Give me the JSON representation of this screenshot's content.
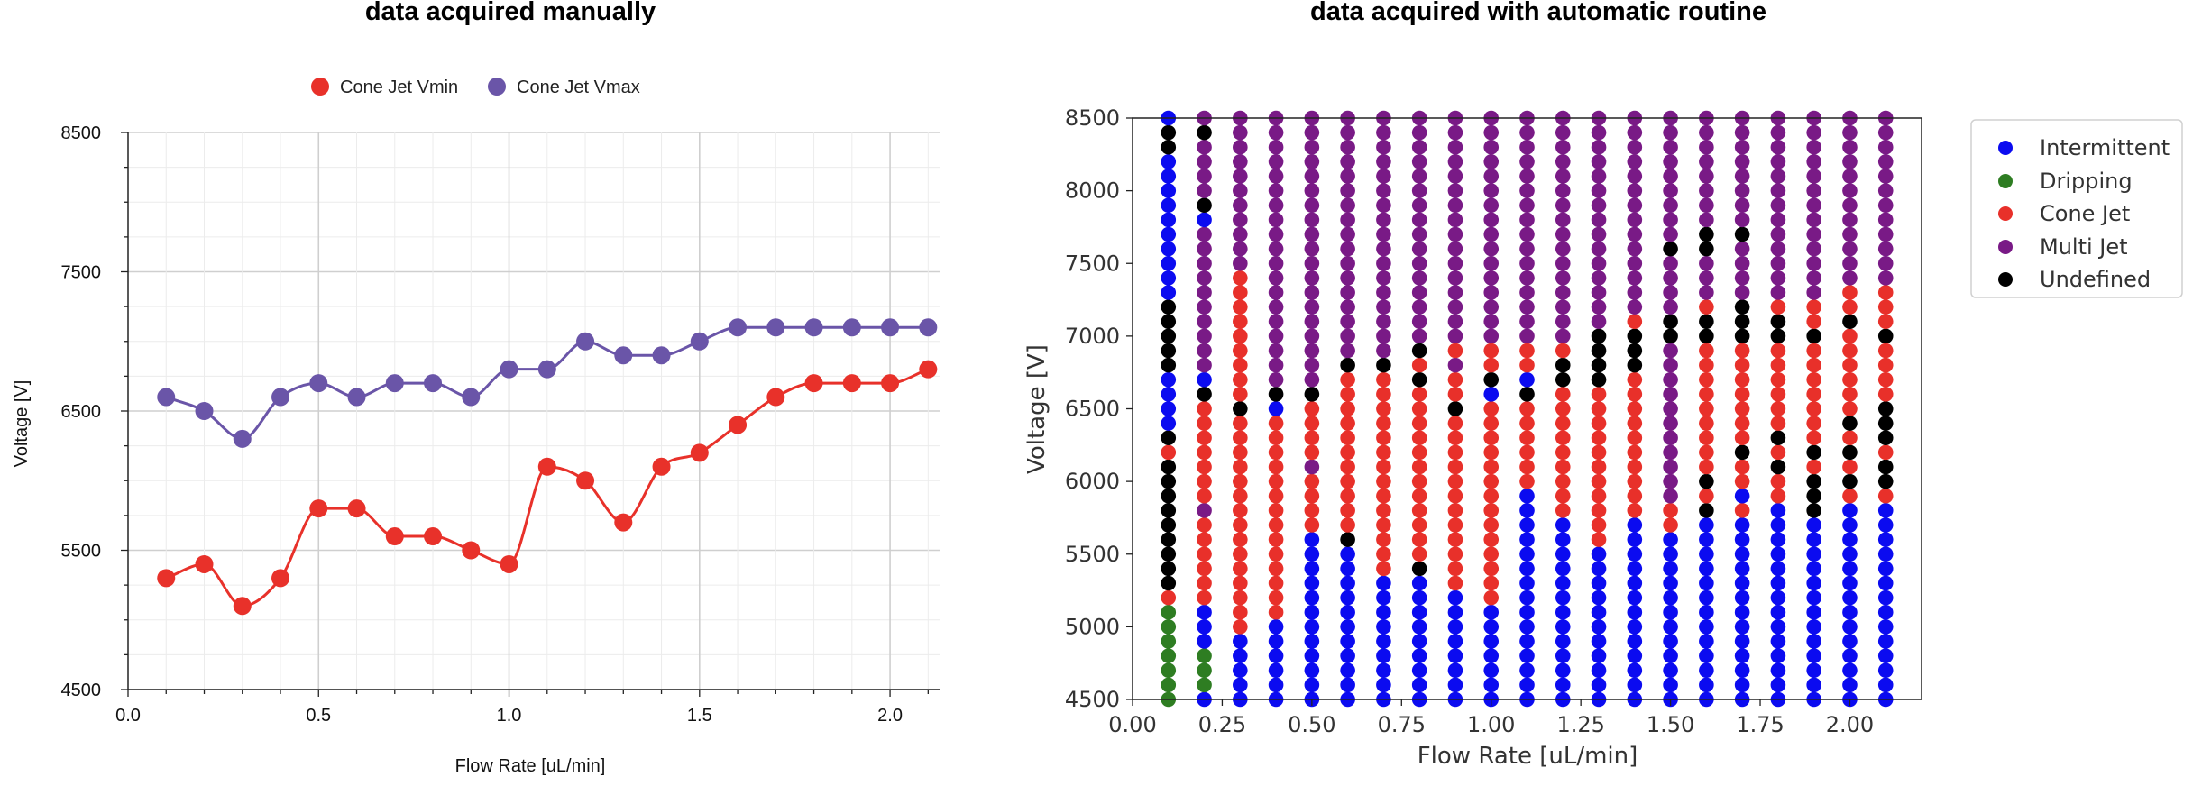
{
  "chart_data": [
    {
      "type": "line",
      "title": "data acquired manually",
      "xlabel": "Flow Rate [uL/min]",
      "ylabel": "Voltage [V]",
      "xlim": [
        0,
        2.13
      ],
      "ylim": [
        4500,
        8500
      ],
      "x_ticks": [
        "0.0",
        "0.5",
        "1.0",
        "1.5",
        "2.0"
      ],
      "y_ticks": [
        "4500",
        "5500",
        "6500",
        "7500",
        "8500"
      ],
      "grid": true,
      "legend": "top-center",
      "x": [
        0.1,
        0.2,
        0.3,
        0.4,
        0.5,
        0.6,
        0.7,
        0.8,
        0.9,
        1.0,
        1.1,
        1.2,
        1.3,
        1.4,
        1.5,
        1.6,
        1.7,
        1.8,
        1.9,
        2.0,
        2.1
      ],
      "series": [
        {
          "name": "Cone Jet Vmin",
          "color": "#e8312a",
          "values": [
            5300,
            5400,
            5100,
            5300,
            5800,
            5800,
            5600,
            5600,
            5500,
            5400,
            6100,
            6000,
            5700,
            6100,
            6200,
            6400,
            6600,
            6700,
            6700,
            6700,
            6800
          ]
        },
        {
          "name": "Cone Jet Vmax",
          "color": "#6a55a8",
          "values": [
            6600,
            6500,
            6300,
            6600,
            6700,
            6600,
            6700,
            6700,
            6600,
            6800,
            6800,
            7000,
            6900,
            6900,
            7000,
            7100,
            7100,
            7100,
            7100,
            7100,
            7100
          ]
        }
      ]
    },
    {
      "type": "scatter",
      "title": "data acquired with automatic routine",
      "xlabel": "Flow Rate [uL/min]",
      "ylabel": "Voltage [V]",
      "xlim": [
        0,
        2.2
      ],
      "ylim": [
        4500,
        8500
      ],
      "x_ticks": [
        "0.00",
        "0.25",
        "0.50",
        "0.75",
        "1.00",
        "1.25",
        "1.50",
        "1.75",
        "2.00"
      ],
      "y_ticks": [
        "4500",
        "5000",
        "5500",
        "6000",
        "6500",
        "7000",
        "7500",
        "8000",
        "8500"
      ],
      "grid": false,
      "legend": "outside-right",
      "x": [
        0.1,
        0.2,
        0.3,
        0.4,
        0.5,
        0.6,
        0.7,
        0.8,
        0.9,
        1.0,
        1.1,
        1.2,
        1.3,
        1.4,
        1.5,
        1.6,
        1.7,
        1.8,
        1.9,
        2.0,
        2.1
      ],
      "y_step": 100,
      "categories": [
        {
          "name": "Intermittent",
          "color": "#0b0bf0"
        },
        {
          "name": "Dripping",
          "color": "#2e7d22"
        },
        {
          "name": "Cone Jet",
          "color": "#e8302a"
        },
        {
          "name": "Multi Jet",
          "color": "#791a86"
        },
        {
          "name": "Undefined",
          "color": "#000000"
        }
      ],
      "column_states": [
        {
          "x": 0.1,
          "ranges": [
            [
              4500,
              5100,
              "Dripping"
            ],
            [
              5200,
              5200,
              "Cone Jet"
            ],
            [
              5300,
              6100,
              "Undefined"
            ],
            [
              6200,
              6200,
              "Cone Jet"
            ],
            [
              6300,
              6300,
              "Undefined"
            ],
            [
              6400,
              6700,
              "Intermittent"
            ],
            [
              6800,
              7200,
              "Undefined"
            ],
            [
              7300,
              8200,
              "Intermittent"
            ],
            [
              8300,
              8400,
              "Undefined"
            ],
            [
              8500,
              8500,
              "Intermittent"
            ]
          ]
        },
        {
          "x": 0.2,
          "ranges": [
            [
              4500,
              4500,
              "Intermittent"
            ],
            [
              4600,
              4800,
              "Dripping"
            ],
            [
              4900,
              5100,
              "Intermittent"
            ],
            [
              5200,
              5700,
              "Cone Jet"
            ],
            [
              5800,
              5800,
              "Multi Jet"
            ],
            [
              5900,
              6500,
              "Cone Jet"
            ],
            [
              6600,
              6600,
              "Undefined"
            ],
            [
              6700,
              6700,
              "Intermittent"
            ],
            [
              6800,
              7700,
              "Multi Jet"
            ],
            [
              7800,
              7800,
              "Intermittent"
            ],
            [
              7900,
              7900,
              "Undefined"
            ],
            [
              8000,
              8300,
              "Multi Jet"
            ],
            [
              8400,
              8400,
              "Undefined"
            ],
            [
              8500,
              8500,
              "Multi Jet"
            ]
          ]
        },
        {
          "x": 0.3,
          "ranges": [
            [
              4500,
              4900,
              "Intermittent"
            ],
            [
              5000,
              6400,
              "Cone Jet"
            ],
            [
              6500,
              6500,
              "Undefined"
            ],
            [
              6600,
              7400,
              "Cone Jet"
            ],
            [
              7500,
              8500,
              "Multi Jet"
            ]
          ]
        },
        {
          "x": 0.4,
          "ranges": [
            [
              4500,
              5000,
              "Intermittent"
            ],
            [
              5100,
              6400,
              "Cone Jet"
            ],
            [
              6500,
              6500,
              "Intermittent"
            ],
            [
              6600,
              6600,
              "Undefined"
            ],
            [
              6700,
              8500,
              "Multi Jet"
            ]
          ]
        },
        {
          "x": 0.5,
          "ranges": [
            [
              4500,
              5600,
              "Intermittent"
            ],
            [
              5700,
              6000,
              "Cone Jet"
            ],
            [
              6100,
              6100,
              "Multi Jet"
            ],
            [
              6200,
              6500,
              "Cone Jet"
            ],
            [
              6600,
              6600,
              "Undefined"
            ],
            [
              6700,
              8500,
              "Multi Jet"
            ]
          ]
        },
        {
          "x": 0.6,
          "ranges": [
            [
              4500,
              5500,
              "Intermittent"
            ],
            [
              5600,
              5600,
              "Undefined"
            ],
            [
              5700,
              6700,
              "Cone Jet"
            ],
            [
              6800,
              6800,
              "Undefined"
            ],
            [
              6900,
              8500,
              "Multi Jet"
            ]
          ]
        },
        {
          "x": 0.7,
          "ranges": [
            [
              4500,
              5300,
              "Intermittent"
            ],
            [
              5400,
              6700,
              "Cone Jet"
            ],
            [
              6800,
              6800,
              "Undefined"
            ],
            [
              6900,
              8500,
              "Multi Jet"
            ]
          ]
        },
        {
          "x": 0.8,
          "ranges": [
            [
              4500,
              5300,
              "Intermittent"
            ],
            [
              5400,
              5400,
              "Undefined"
            ],
            [
              5500,
              6600,
              "Cone Jet"
            ],
            [
              6700,
              6700,
              "Undefined"
            ],
            [
              6800,
              6800,
              "Cone Jet"
            ],
            [
              6900,
              6900,
              "Undefined"
            ],
            [
              7000,
              8500,
              "Multi Jet"
            ]
          ]
        },
        {
          "x": 0.9,
          "ranges": [
            [
              4500,
              5200,
              "Intermittent"
            ],
            [
              5300,
              6400,
              "Cone Jet"
            ],
            [
              6500,
              6500,
              "Undefined"
            ],
            [
              6600,
              6700,
              "Cone Jet"
            ],
            [
              6800,
              6800,
              "Multi Jet"
            ],
            [
              6900,
              6900,
              "Cone Jet"
            ],
            [
              7000,
              8500,
              "Multi Jet"
            ]
          ]
        },
        {
          "x": 1.0,
          "ranges": [
            [
              4500,
              5100,
              "Intermittent"
            ],
            [
              5200,
              6500,
              "Cone Jet"
            ],
            [
              6600,
              6600,
              "Intermittent"
            ],
            [
              6700,
              6700,
              "Undefined"
            ],
            [
              6800,
              6900,
              "Cone Jet"
            ],
            [
              7000,
              8500,
              "Multi Jet"
            ]
          ]
        },
        {
          "x": 1.1,
          "ranges": [
            [
              4500,
              5900,
              "Intermittent"
            ],
            [
              6000,
              6500,
              "Cone Jet"
            ],
            [
              6600,
              6600,
              "Undefined"
            ],
            [
              6700,
              6700,
              "Intermittent"
            ],
            [
              6800,
              6900,
              "Cone Jet"
            ],
            [
              7000,
              8500,
              "Multi Jet"
            ]
          ]
        },
        {
          "x": 1.2,
          "ranges": [
            [
              4500,
              5700,
              "Intermittent"
            ],
            [
              5800,
              6600,
              "Cone Jet"
            ],
            [
              6700,
              6800,
              "Undefined"
            ],
            [
              6900,
              6900,
              "Cone Jet"
            ],
            [
              7000,
              8500,
              "Multi Jet"
            ]
          ]
        },
        {
          "x": 1.3,
          "ranges": [
            [
              4500,
              5500,
              "Intermittent"
            ],
            [
              5600,
              6600,
              "Cone Jet"
            ],
            [
              6700,
              7000,
              "Undefined"
            ],
            [
              7100,
              8500,
              "Multi Jet"
            ]
          ]
        },
        {
          "x": 1.4,
          "ranges": [
            [
              4500,
              5700,
              "Intermittent"
            ],
            [
              5800,
              6700,
              "Cone Jet"
            ],
            [
              6800,
              7000,
              "Undefined"
            ],
            [
              7100,
              7100,
              "Cone Jet"
            ],
            [
              7200,
              8500,
              "Multi Jet"
            ]
          ]
        },
        {
          "x": 1.5,
          "ranges": [
            [
              4500,
              5600,
              "Intermittent"
            ],
            [
              5700,
              5800,
              "Cone Jet"
            ],
            [
              5900,
              6900,
              "Multi Jet"
            ],
            [
              7000,
              7100,
              "Undefined"
            ],
            [
              7200,
              7500,
              "Multi Jet"
            ],
            [
              7600,
              7600,
              "Undefined"
            ],
            [
              7700,
              8500,
              "Multi Jet"
            ]
          ]
        },
        {
          "x": 1.6,
          "ranges": [
            [
              4500,
              5700,
              "Intermittent"
            ],
            [
              5800,
              5800,
              "Undefined"
            ],
            [
              5900,
              5900,
              "Cone Jet"
            ],
            [
              6000,
              6000,
              "Undefined"
            ],
            [
              6100,
              6900,
              "Cone Jet"
            ],
            [
              7000,
              7100,
              "Undefined"
            ],
            [
              7200,
              7200,
              "Cone Jet"
            ],
            [
              7300,
              7500,
              "Multi Jet"
            ],
            [
              7600,
              7700,
              "Undefined"
            ],
            [
              7800,
              8500,
              "Multi Jet"
            ]
          ]
        },
        {
          "x": 1.7,
          "ranges": [
            [
              4500,
              5700,
              "Intermittent"
            ],
            [
              5800,
              5800,
              "Cone Jet"
            ],
            [
              5900,
              5900,
              "Intermittent"
            ],
            [
              6000,
              6100,
              "Cone Jet"
            ],
            [
              6200,
              6200,
              "Undefined"
            ],
            [
              6300,
              6900,
              "Cone Jet"
            ],
            [
              7000,
              7200,
              "Undefined"
            ],
            [
              7300,
              7600,
              "Multi Jet"
            ],
            [
              7700,
              7700,
              "Undefined"
            ],
            [
              7800,
              8500,
              "Multi Jet"
            ]
          ]
        },
        {
          "x": 1.8,
          "ranges": [
            [
              4500,
              5800,
              "Intermittent"
            ],
            [
              5900,
              6000,
              "Cone Jet"
            ],
            [
              6100,
              6100,
              "Undefined"
            ],
            [
              6200,
              6200,
              "Cone Jet"
            ],
            [
              6300,
              6300,
              "Undefined"
            ],
            [
              6400,
              6900,
              "Cone Jet"
            ],
            [
              7000,
              7100,
              "Undefined"
            ],
            [
              7200,
              7200,
              "Cone Jet"
            ],
            [
              7300,
              8500,
              "Multi Jet"
            ]
          ]
        },
        {
          "x": 1.9,
          "ranges": [
            [
              4500,
              5700,
              "Intermittent"
            ],
            [
              5800,
              6000,
              "Undefined"
            ],
            [
              6100,
              6100,
              "Cone Jet"
            ],
            [
              6200,
              6200,
              "Undefined"
            ],
            [
              6300,
              6900,
              "Cone Jet"
            ],
            [
              7000,
              7000,
              "Undefined"
            ],
            [
              7100,
              7200,
              "Cone Jet"
            ],
            [
              7300,
              8500,
              "Multi Jet"
            ]
          ]
        },
        {
          "x": 2.0,
          "ranges": [
            [
              4500,
              5800,
              "Intermittent"
            ],
            [
              5900,
              5900,
              "Cone Jet"
            ],
            [
              6000,
              6000,
              "Undefined"
            ],
            [
              6100,
              6100,
              "Cone Jet"
            ],
            [
              6200,
              6200,
              "Undefined"
            ],
            [
              6300,
              6300,
              "Cone Jet"
            ],
            [
              6400,
              6400,
              "Undefined"
            ],
            [
              6500,
              7000,
              "Cone Jet"
            ],
            [
              7100,
              7100,
              "Undefined"
            ],
            [
              7200,
              7300,
              "Cone Jet"
            ],
            [
              7400,
              8500,
              "Multi Jet"
            ]
          ]
        },
        {
          "x": 2.1,
          "ranges": [
            [
              4500,
              5800,
              "Intermittent"
            ],
            [
              5900,
              5900,
              "Cone Jet"
            ],
            [
              6000,
              6100,
              "Undefined"
            ],
            [
              6200,
              6200,
              "Cone Jet"
            ],
            [
              6300,
              6500,
              "Undefined"
            ],
            [
              6600,
              6900,
              "Cone Jet"
            ],
            [
              7000,
              7000,
              "Undefined"
            ],
            [
              7100,
              7300,
              "Cone Jet"
            ],
            [
              7400,
              8500,
              "Multi Jet"
            ]
          ]
        }
      ]
    }
  ]
}
